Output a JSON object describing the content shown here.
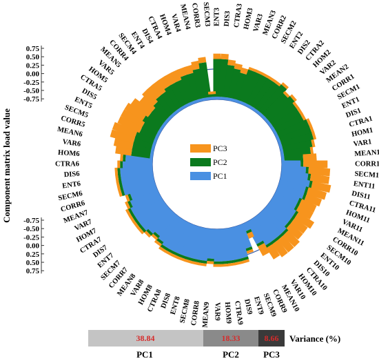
{
  "chart_data": {
    "type": "bar",
    "layout": "circular-stacked",
    "ylabel": "Component matrix load value",
    "yticks": [
      "0.75",
      "0.50",
      "0.25",
      "0.00",
      "-0.25",
      "-0.50",
      "-0.75"
    ],
    "ylim": [
      -0.75,
      0.75
    ],
    "stack_order": [
      "PC1",
      "PC2",
      "PC3"
    ],
    "legend": {
      "placement": "center",
      "entries": [
        {
          "name": "PC3",
          "color": "#f7941d"
        },
        {
          "name": "PC2",
          "color": "#0b7a1e"
        },
        {
          "name": "PC1",
          "color": "#4a90e2"
        }
      ]
    },
    "categories": [
      "ENT3",
      "DIS3",
      "CTRA3",
      "HOM3",
      "VAR3",
      "MEAN3",
      "CORR2",
      "SECM2",
      "ENT2",
      "DIS2",
      "CTRA2",
      "HOM2",
      "VAR2",
      "MEAN2",
      "CORR1",
      "SECM1",
      "ENT1",
      "DIS1",
      "CTRA1",
      "HOM1",
      "VAR1",
      "MEAN1",
      "CORR11",
      "SECM11",
      "ENT11",
      "DIS11",
      "CTRA11",
      "HOM11",
      "VAR11",
      "MEAN11",
      "CORR10",
      "SECM10",
      "ENT10",
      "DIS10",
      "CTRA10",
      "HOM10",
      "VAR10",
      "MEAN10",
      "CORR9",
      "SECM9",
      "ENT9",
      "DIS9",
      "CTRA9",
      "HOM9",
      "VAR9",
      "MEAN9",
      "CORR8",
      "SECM8",
      "ENT8",
      "DIS8",
      "CTRA8",
      "HOM8",
      "VAR8",
      "MEAN8",
      "CORR7",
      "SECM7",
      "ENT7",
      "DIS7",
      "CTRA7",
      "HOM7",
      "VAR7",
      "MEAN7",
      "CORR6",
      "SECM6",
      "ENT6",
      "DIS6",
      "CTRA6",
      "HOM6",
      "VAR6",
      "MEAN6",
      "CORR5",
      "SECM5",
      "ENT5",
      "DIS5",
      "CTRA5",
      "HOM5",
      "VAR5",
      "MEAN5",
      "CORR4",
      "SECM4",
      "ENT4",
      "DIS4",
      "CTRA4",
      "HOM4",
      "VAR4",
      "MEAN4",
      "CORR3",
      "SECM3"
    ],
    "series": [
      {
        "name": "PC1",
        "values": [
          0.05,
          0.05,
          0.05,
          0.05,
          0.05,
          0.05,
          0.05,
          0.05,
          0.05,
          0.05,
          0.05,
          0.05,
          0.05,
          0.05,
          0.05,
          0.05,
          0.05,
          0.05,
          0.05,
          0.05,
          0.05,
          0.05,
          0.35,
          0.45,
          0.5,
          0.55,
          0.5,
          0.5,
          0.45,
          0.45,
          0.5,
          0.5,
          0.5,
          0.55,
          0.55,
          0.55,
          0.55,
          0.45,
          0.15,
          0.45,
          0.6,
          0.6,
          0.6,
          0.6,
          0.6,
          0.55,
          0.6,
          0.6,
          0.6,
          0.6,
          0.6,
          0.6,
          0.6,
          0.55,
          0.5,
          0.55,
          0.6,
          0.6,
          0.6,
          0.6,
          0.55,
          0.5,
          0.6,
          0.6,
          0.6,
          0.6,
          0.55,
          0.5,
          0.05,
          0.05,
          0.05,
          0.05,
          0.05,
          0.05,
          0.05,
          0.05,
          0.05,
          0.05,
          0.05,
          0.05,
          0.05,
          0.05,
          0.05,
          0.05,
          0.05,
          0.05,
          0.05,
          0.05
        ]
      },
      {
        "name": "PC2",
        "values": [
          0.7,
          0.7,
          0.6,
          0.55,
          0.5,
          0.6,
          0.6,
          0.6,
          0.6,
          0.6,
          0.65,
          0.55,
          0.6,
          0.55,
          0.55,
          0.55,
          0.6,
          0.6,
          0.6,
          0.55,
          0.5,
          0.35,
          0.05,
          0.05,
          0.05,
          0.05,
          0.05,
          0.05,
          0.05,
          0.05,
          0.05,
          0.05,
          0.05,
          0.05,
          0.05,
          0.05,
          0.05,
          0.05,
          0.05,
          0.05,
          0.05,
          0.05,
          0.05,
          0.05,
          0.05,
          0.05,
          0.05,
          0.05,
          0.05,
          0.05,
          0.05,
          0.05,
          0.05,
          0.05,
          0.05,
          0.05,
          0.05,
          0.05,
          0.05,
          0.05,
          0.05,
          0.05,
          0.05,
          0.05,
          0.05,
          0.05,
          0.05,
          0.05,
          0.35,
          0.35,
          0.35,
          0.35,
          0.3,
          0.3,
          0.35,
          0.3,
          0.3,
          0.35,
          0.4,
          0.4,
          0.45,
          0.45,
          0.45,
          0.5,
          0.5,
          0.55,
          0.65,
          0.05
        ]
      },
      {
        "name": "PC3",
        "values": [
          0.1,
          0.1,
          0.1,
          0.1,
          0.1,
          0.05,
          0.05,
          0.05,
          0.05,
          0.05,
          0.05,
          0.05,
          0.05,
          0.05,
          0.05,
          0.05,
          0.05,
          0.05,
          0.05,
          0.05,
          0.05,
          0.25,
          0.45,
          0.4,
          0.35,
          0.35,
          0.35,
          0.3,
          0.3,
          0.3,
          0.35,
          0.3,
          0.3,
          0.3,
          0.3,
          0.3,
          0.25,
          0.2,
          0.1,
          0.05,
          0.05,
          0.05,
          0.05,
          0.05,
          0.05,
          0.05,
          0.05,
          0.05,
          0.05,
          0.05,
          0.05,
          0.05,
          0.05,
          0.05,
          0.05,
          0.05,
          0.05,
          0.05,
          0.05,
          0.05,
          0.05,
          0.05,
          0.05,
          0.05,
          0.05,
          0.05,
          0.05,
          0.05,
          0.3,
          0.35,
          0.45,
          0.45,
          0.45,
          0.45,
          0.4,
          0.4,
          0.3,
          0.3,
          0.25,
          0.25,
          0.2,
          0.2,
          0.2,
          0.15,
          0.15,
          0.15,
          0.1,
          0.05
        ]
      }
    ],
    "variance": {
      "title": "Variance (%)",
      "items": [
        {
          "pc": "PC1",
          "value": "38.84",
          "fill": "#c4c4c4"
        },
        {
          "pc": "PC2",
          "value": "18.33",
          "fill": "#8a8a8a"
        },
        {
          "pc": "PC3",
          "value": "8.66",
          "fill": "#3a3a3a"
        }
      ],
      "value_color": "#d62b2b"
    }
  }
}
